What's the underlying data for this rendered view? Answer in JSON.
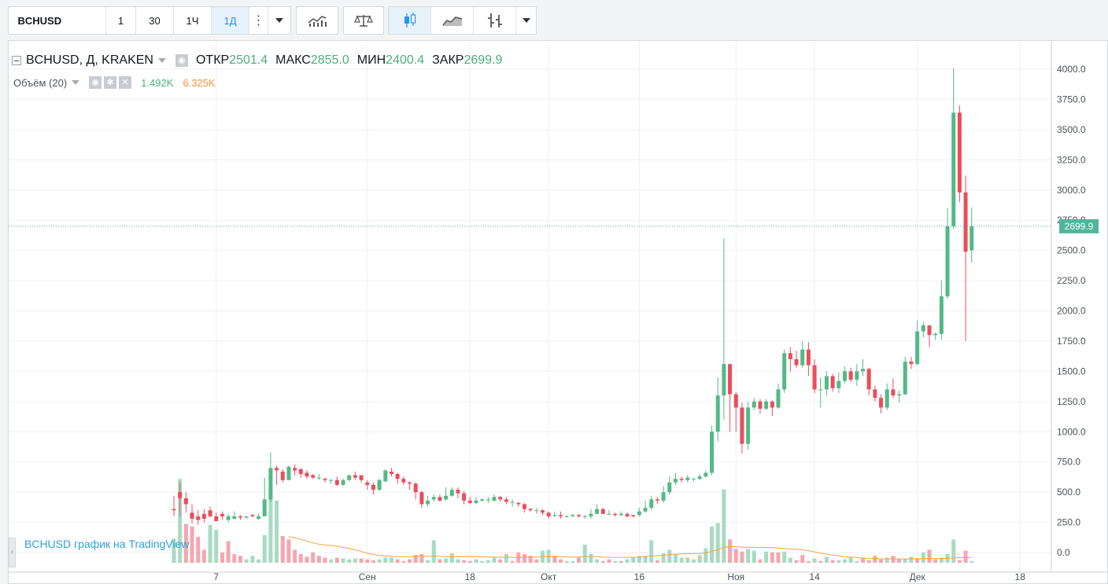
{
  "toolbar": {
    "symbol": "BCHUSD",
    "intervals": [
      "1",
      "30",
      "1Ч",
      "1Д"
    ],
    "active_interval": "1Д"
  },
  "legend": {
    "title": "BCHUSD, Д, KRAKEN",
    "open_label": "ОТКР",
    "open": "2501.4",
    "high_label": "МАКС",
    "high": "2855.0",
    "low_label": "МИН",
    "low": "2400.4",
    "close_label": "ЗАКР",
    "close": "2699.9",
    "volume_label": "Объём (20)",
    "volume_value": "1.492K",
    "volume_ma": "6.325K"
  },
  "price_tag": "2699.9",
  "watermark": "BCHUSD график на TradingView",
  "colors": {
    "up": "#53b987",
    "down": "#eb4d5c",
    "vol_up": "#a8dbc1",
    "vol_down": "#f5a6ae",
    "ma": "#ff9f3f",
    "price_line": "#4fb59b",
    "watermark": "#2fa0d8"
  },
  "chart_data": {
    "type": "candlestick",
    "y_ticks": [
      "4000.0",
      "3750.0",
      "3500.0",
      "3250.0",
      "3000.0",
      "2750.0",
      "2500.0",
      "2250.0",
      "2000.0",
      "1750.0",
      "1500.0",
      "1250.0",
      "1000.0",
      "750.0",
      "500.0",
      "250.0",
      "0.0"
    ],
    "x_ticks": [
      {
        "label": "7",
        "day": 7
      },
      {
        "label": "Сен",
        "day": 32
      },
      {
        "label": "18",
        "day": 49
      },
      {
        "label": "Окт",
        "day": 62
      },
      {
        "label": "16",
        "day": 77
      },
      {
        "label": "Ноя",
        "day": 93
      },
      {
        "label": "14",
        "day": 106
      },
      {
        "label": "Дек",
        "day": 123
      },
      {
        "label": "18",
        "day": 140
      }
    ],
    "ylim": [
      -120,
      4100
    ],
    "candles": [
      [
        360,
        350,
        470,
        300
      ],
      [
        500,
        450,
        580,
        300
      ],
      [
        450,
        400,
        500,
        330
      ],
      [
        330,
        280,
        400,
        240
      ],
      [
        300,
        270,
        350,
        230
      ],
      [
        320,
        280,
        360,
        250
      ],
      [
        350,
        300,
        380,
        290
      ],
      [
        300,
        260,
        330,
        260
      ],
      [
        320,
        300,
        340,
        270
      ],
      [
        270,
        300,
        320,
        250
      ],
      [
        280,
        300,
        340,
        280
      ],
      [
        300,
        290,
        310,
        270
      ],
      [
        290,
        300,
        300,
        280
      ],
      [
        310,
        300,
        320,
        290
      ],
      [
        280,
        300,
        320,
        270
      ],
      [
        300,
        440,
        620,
        300
      ],
      [
        440,
        700,
        830,
        420
      ],
      [
        700,
        680,
        720,
        560
      ],
      [
        670,
        600,
        690,
        580
      ],
      [
        600,
        710,
        720,
        600
      ],
      [
        700,
        680,
        730,
        640
      ],
      [
        690,
        650,
        700,
        620
      ],
      [
        660,
        630,
        680,
        610
      ],
      [
        640,
        620,
        650,
        610
      ],
      [
        620,
        620,
        650,
        600
      ],
      [
        610,
        600,
        620,
        580
      ],
      [
        600,
        600,
        610,
        570
      ],
      [
        600,
        560,
        630,
        550
      ],
      [
        560,
        600,
        610,
        550
      ],
      [
        600,
        640,
        640,
        590
      ],
      [
        640,
        620,
        670,
        600
      ],
      [
        640,
        600,
        620,
        580
      ],
      [
        580,
        560,
        600,
        520
      ],
      [
        560,
        520,
        580,
        480
      ],
      [
        520,
        600,
        610,
        510
      ],
      [
        590,
        680,
        690,
        580
      ],
      [
        670,
        650,
        700,
        630
      ],
      [
        650,
        610,
        660,
        570
      ],
      [
        610,
        580,
        630,
        560
      ],
      [
        580,
        570,
        590,
        520
      ],
      [
        570,
        500,
        580,
        440
      ],
      [
        500,
        400,
        510,
        370
      ],
      [
        400,
        430,
        470,
        380
      ],
      [
        440,
        460,
        480,
        420
      ],
      [
        460,
        430,
        480,
        420
      ],
      [
        440,
        470,
        540,
        430
      ],
      [
        470,
        520,
        540,
        460
      ],
      [
        520,
        490,
        540,
        450
      ],
      [
        490,
        430,
        510,
        400
      ],
      [
        430,
        410,
        460,
        400
      ],
      [
        410,
        430,
        460,
        400
      ],
      [
        430,
        440,
        450,
        420
      ],
      [
        440,
        440,
        460,
        410
      ],
      [
        430,
        460,
        480,
        420
      ],
      [
        460,
        440,
        470,
        420
      ],
      [
        440,
        420,
        460,
        400
      ],
      [
        420,
        420,
        440,
        380
      ],
      [
        410,
        400,
        420,
        380
      ],
      [
        400,
        360,
        410,
        330
      ],
      [
        360,
        350,
        370,
        340
      ],
      [
        350,
        350,
        370,
        320
      ],
      [
        350,
        330,
        360,
        310
      ],
      [
        330,
        300,
        340,
        280
      ],
      [
        310,
        310,
        340,
        290
      ],
      [
        310,
        300,
        340,
        280
      ],
      [
        300,
        300,
        310,
        290
      ],
      [
        300,
        310,
        320,
        300
      ],
      [
        310,
        300,
        320,
        290
      ],
      [
        300,
        300,
        310,
        280
      ],
      [
        300,
        320,
        360,
        280
      ],
      [
        320,
        360,
        400,
        320
      ],
      [
        360,
        320,
        370,
        320
      ],
      [
        320,
        320,
        350,
        310
      ],
      [
        320,
        310,
        330,
        300
      ],
      [
        310,
        320,
        340,
        300
      ],
      [
        320,
        300,
        330,
        290
      ],
      [
        310,
        300,
        310,
        290
      ],
      [
        310,
        340,
        370,
        300
      ],
      [
        340,
        370,
        430,
        330
      ],
      [
        370,
        440,
        470,
        350
      ],
      [
        440,
        430,
        460,
        400
      ],
      [
        430,
        500,
        550,
        410
      ],
      [
        500,
        580,
        630,
        480
      ],
      [
        580,
        610,
        660,
        560
      ],
      [
        610,
        600,
        630,
        580
      ],
      [
        600,
        620,
        640,
        580
      ],
      [
        610,
        610,
        620,
        590
      ],
      [
        610,
        630,
        650,
        600
      ],
      [
        630,
        660,
        680,
        620
      ],
      [
        660,
        1000,
        1050,
        640
      ],
      [
        1000,
        1300,
        1450,
        920
      ],
      [
        1300,
        1560,
        2600,
        1100
      ],
      [
        1560,
        1310,
        1560,
        1000
      ],
      [
        1310,
        1200,
        1330,
        1000
      ],
      [
        1200,
        900,
        1240,
        820
      ],
      [
        900,
        1200,
        1250,
        850
      ],
      [
        1200,
        1250,
        1280,
        1180
      ],
      [
        1250,
        1190,
        1270,
        1150
      ],
      [
        1190,
        1250,
        1270,
        1180
      ],
      [
        1250,
        1200,
        1260,
        1130
      ],
      [
        1200,
        1350,
        1400,
        1190
      ],
      [
        1350,
        1650,
        1680,
        1320
      ],
      [
        1650,
        1600,
        1700,
        1500
      ],
      [
        1600,
        1550,
        1670,
        1530
      ],
      [
        1550,
        1680,
        1750,
        1530
      ],
      [
        1680,
        1550,
        1740,
        1460
      ],
      [
        1550,
        1350,
        1600,
        1320
      ],
      [
        1350,
        1350,
        1450,
        1200
      ],
      [
        1350,
        1460,
        1500,
        1300
      ],
      [
        1460,
        1360,
        1480,
        1330
      ],
      [
        1360,
        1420,
        1490,
        1320
      ],
      [
        1420,
        1500,
        1540,
        1400
      ],
      [
        1500,
        1430,
        1530,
        1410
      ],
      [
        1430,
        1500,
        1560,
        1380
      ],
      [
        1500,
        1520,
        1600,
        1460
      ],
      [
        1520,
        1350,
        1530,
        1300
      ],
      [
        1350,
        1280,
        1380,
        1250
      ],
      [
        1280,
        1200,
        1310,
        1150
      ],
      [
        1200,
        1350,
        1400,
        1180
      ],
      [
        1350,
        1300,
        1440,
        1280
      ],
      [
        1300,
        1310,
        1340,
        1240
      ],
      [
        1310,
        1580,
        1620,
        1300
      ],
      [
        1580,
        1560,
        1620,
        1520
      ],
      [
        1560,
        1830,
        1920,
        1550
      ],
      [
        1830,
        1880,
        1910,
        1780
      ],
      [
        1880,
        1800,
        1830,
        1700
      ],
      [
        1800,
        1810,
        1820,
        1760
      ],
      [
        1810,
        2120,
        2250,
        1760
      ],
      [
        2120,
        2700,
        2850,
        2100
      ],
      [
        2700,
        3640,
        4010,
        2680
      ],
      [
        3640,
        2980,
        3700,
        2900
      ],
      [
        2980,
        2490,
        3120,
        1750
      ],
      [
        2501.4,
        2699.9,
        2855,
        2400.4
      ]
    ],
    "volumes": [
      [
        280,
        0
      ],
      [
        970,
        0
      ],
      [
        450,
        1
      ],
      [
        420,
        1
      ],
      [
        300,
        1
      ],
      [
        150,
        1
      ],
      [
        440,
        0
      ],
      [
        380,
        0
      ],
      [
        120,
        1
      ],
      [
        250,
        1
      ],
      [
        100,
        1
      ],
      [
        80,
        1
      ],
      [
        40,
        0
      ],
      [
        80,
        0
      ],
      [
        40,
        0
      ],
      [
        320,
        0
      ],
      [
        820,
        0
      ],
      [
        720,
        0
      ],
      [
        310,
        1
      ],
      [
        270,
        1
      ],
      [
        150,
        1
      ],
      [
        100,
        1
      ],
      [
        70,
        1
      ],
      [
        120,
        1
      ],
      [
        80,
        1
      ],
      [
        60,
        1
      ],
      [
        40,
        0
      ],
      [
        60,
        1
      ],
      [
        50,
        0
      ],
      [
        40,
        0
      ],
      [
        50,
        0
      ],
      [
        50,
        1
      ],
      [
        40,
        1
      ],
      [
        30,
        1
      ],
      [
        40,
        0
      ],
      [
        60,
        0
      ],
      [
        60,
        0
      ],
      [
        40,
        1
      ],
      [
        20,
        1
      ],
      [
        40,
        1
      ],
      [
        90,
        1
      ],
      [
        100,
        1
      ],
      [
        30,
        0
      ],
      [
        260,
        0
      ],
      [
        40,
        1
      ],
      [
        50,
        0
      ],
      [
        110,
        0
      ],
      [
        40,
        0
      ],
      [
        30,
        1
      ],
      [
        20,
        1
      ],
      [
        40,
        0
      ],
      [
        20,
        0
      ],
      [
        30,
        0
      ],
      [
        60,
        0
      ],
      [
        40,
        1
      ],
      [
        100,
        0
      ],
      [
        20,
        1
      ],
      [
        120,
        1
      ],
      [
        100,
        1
      ],
      [
        80,
        1
      ],
      [
        40,
        1
      ],
      [
        140,
        0
      ],
      [
        150,
        0
      ],
      [
        80,
        1
      ],
      [
        40,
        1
      ],
      [
        20,
        0
      ],
      [
        20,
        0
      ],
      [
        60,
        1
      ],
      [
        210,
        0
      ],
      [
        100,
        0
      ],
      [
        40,
        0
      ],
      [
        20,
        1
      ],
      [
        40,
        1
      ],
      [
        20,
        0
      ],
      [
        20,
        1
      ],
      [
        40,
        0
      ],
      [
        60,
        0
      ],
      [
        80,
        0
      ],
      [
        80,
        0
      ],
      [
        260,
        0
      ],
      [
        30,
        1
      ],
      [
        110,
        0
      ],
      [
        150,
        0
      ],
      [
        100,
        0
      ],
      [
        60,
        0
      ],
      [
        60,
        0
      ],
      [
        40,
        0
      ],
      [
        90,
        0
      ],
      [
        170,
        0
      ],
      [
        420,
        0
      ],
      [
        460,
        0
      ],
      [
        850,
        0
      ],
      [
        270,
        1
      ],
      [
        160,
        1
      ],
      [
        130,
        1
      ],
      [
        160,
        0
      ],
      [
        140,
        0
      ],
      [
        40,
        1
      ],
      [
        130,
        0
      ],
      [
        120,
        1
      ],
      [
        120,
        1
      ],
      [
        130,
        0
      ],
      [
        60,
        0
      ],
      [
        30,
        1
      ],
      [
        90,
        1
      ],
      [
        20,
        1
      ],
      [
        50,
        0
      ],
      [
        20,
        1
      ],
      [
        70,
        0
      ],
      [
        30,
        1
      ],
      [
        30,
        0
      ],
      [
        40,
        0
      ],
      [
        60,
        0
      ],
      [
        20,
        0
      ],
      [
        50,
        1
      ],
      [
        30,
        1
      ],
      [
        80,
        1
      ],
      [
        40,
        1
      ],
      [
        60,
        0
      ],
      [
        80,
        1
      ],
      [
        40,
        1
      ],
      [
        50,
        0
      ],
      [
        70,
        0
      ],
      [
        50,
        1
      ],
      [
        120,
        0
      ],
      [
        150,
        1
      ],
      [
        40,
        1
      ],
      [
        60,
        0
      ],
      [
        100,
        0
      ],
      [
        270,
        0
      ],
      [
        30,
        1
      ],
      [
        140,
        1
      ],
      [
        20,
        0
      ]
    ],
    "volume_ma": [
      null,
      null,
      null,
      null,
      null,
      null,
      null,
      null,
      null,
      null,
      null,
      null,
      null,
      null,
      null,
      null,
      null,
      null,
      null,
      300,
      290,
      270,
      250,
      230,
      215,
      205,
      200,
      190,
      180,
      165,
      150,
      130,
      110,
      95,
      85,
      80,
      75,
      70,
      70,
      72,
      75,
      78,
      70,
      80,
      75,
      70,
      72,
      73,
      72,
      72,
      70,
      68,
      67,
      66,
      64,
      65,
      62,
      63,
      65,
      67,
      66,
      68,
      72,
      70,
      70,
      68,
      66,
      66,
      74,
      72,
      70,
      66,
      64,
      62,
      62,
      62,
      64,
      66,
      70,
      80,
      80,
      86,
      94,
      100,
      104,
      106,
      106,
      108,
      114,
      132,
      150,
      180,
      188,
      186,
      180,
      180,
      180,
      176,
      176,
      176,
      170,
      164,
      160,
      155,
      150,
      140,
      125,
      110,
      100,
      90,
      80,
      70,
      65,
      60,
      55,
      50,
      48,
      45,
      45,
      44,
      44,
      45,
      46,
      47,
      48,
      50,
      48,
      50,
      52,
      55,
      60,
      62,
      60
    ]
  }
}
